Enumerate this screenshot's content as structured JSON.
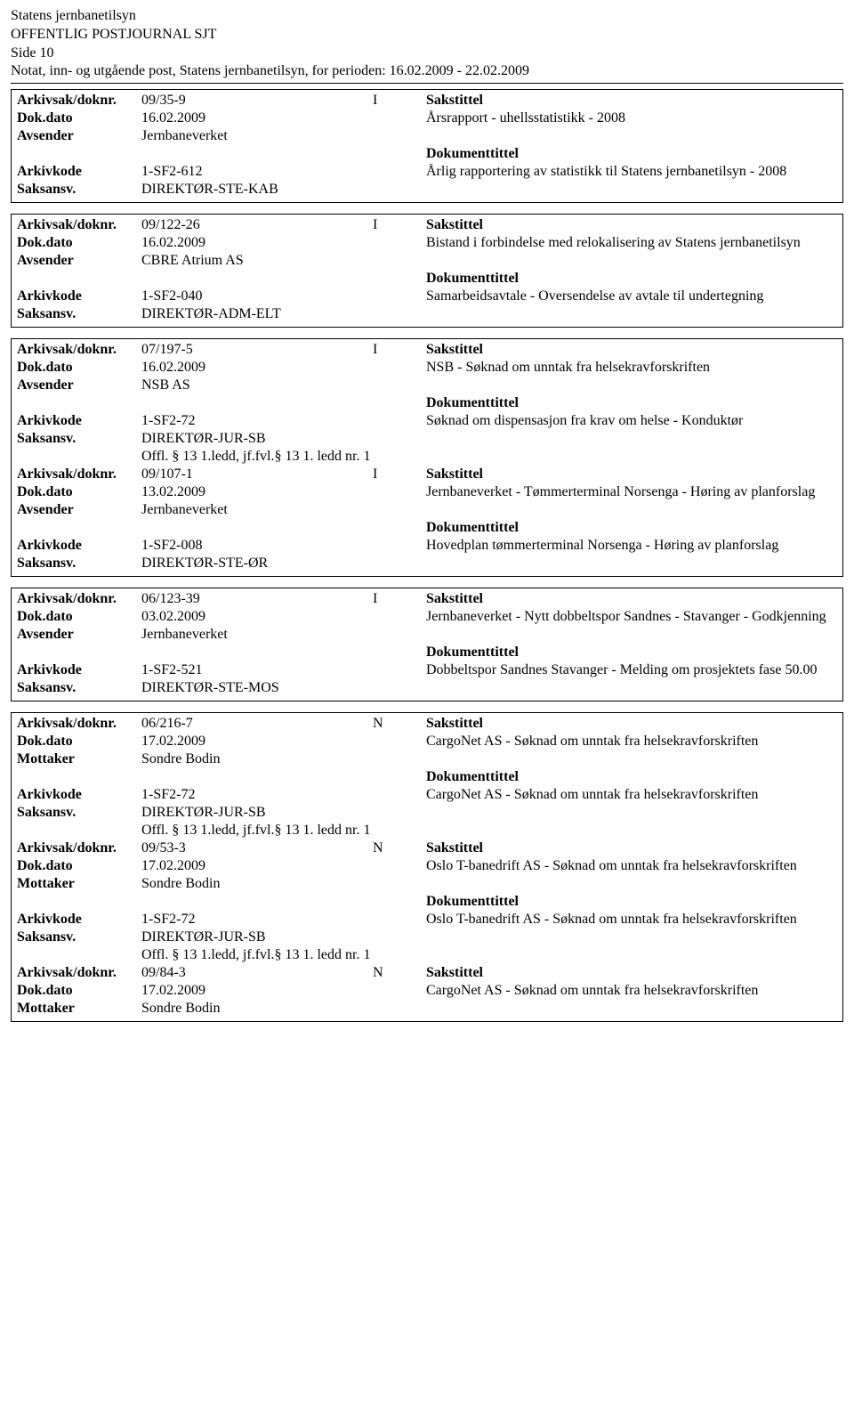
{
  "header": {
    "org": "Statens jernbanetilsyn",
    "title": "OFFENTLIG POSTJOURNAL SJT",
    "page": "Side 10",
    "period_line": "Notat, inn- og utgående post, Statens jernbanetilsyn, for perioden: 16.02.2009 - 22.02.2009"
  },
  "labels": {
    "arkivsak": "Arkivsak/doknr.",
    "dokdato": "Dok.dato",
    "avsender": "Avsender",
    "mottaker": "Mottaker",
    "arkivkode": "Arkivkode",
    "saksansv": "Saksansv.",
    "sakstittel": "Sakstittel",
    "dokumenttittel": "Dokumenttittel"
  },
  "entries": [
    {
      "arkivsak": "09/35-9",
      "io": "I",
      "dokdato": "16.02.2009",
      "party_label": "Avsender",
      "party": "Jernbaneverket",
      "arkivkode": "1-SF2-612",
      "saksansv": "DIREKTØR-STE-KAB",
      "sakstittel": "Årsrapport - uhellsstatistikk - 2008",
      "dokumenttittel": "Årlig rapportering av statistikk til Statens jernbanetilsyn - 2008",
      "offl": null
    },
    {
      "arkivsak": "09/122-26",
      "io": "I",
      "dokdato": "16.02.2009",
      "party_label": "Avsender",
      "party": "CBRE Atrium AS",
      "arkivkode": "1-SF2-040",
      "saksansv": "DIREKTØR-ADM-ELT",
      "sakstittel": "Bistand i forbindelse med relokalisering av Statens jernbanetilsyn",
      "dokumenttittel": "Samarbeidsavtale - Oversendelse av avtale til undertegning",
      "offl": null
    },
    {
      "arkivsak": "07/197-5",
      "io": "I",
      "dokdato": "16.02.2009",
      "party_label": "Avsender",
      "party": "NSB AS",
      "arkivkode": "1-SF2-72",
      "saksansv": "DIREKTØR-JUR-SB",
      "sakstittel": "NSB - Søknad om unntak fra helsekravforskriften",
      "dokumenttittel": "Søknad om dispensasjon fra krav om helse - Konduktør",
      "offl": "Offl. § 13 1.ledd, jf.fvl.§ 13 1. ledd nr. 1"
    },
    {
      "arkivsak": "09/107-1",
      "io": "I",
      "dokdato": "13.02.2009",
      "party_label": "Avsender",
      "party": "Jernbaneverket",
      "arkivkode": "1-SF2-008",
      "saksansv": "DIREKTØR-STE-ØR",
      "sakstittel": "Jernbaneverket - Tømmerterminal Norsenga - Høring av planforslag",
      "dokumenttittel": "Hovedplan tømmerterminal Norsenga - Høring av planforslag",
      "offl": null,
      "joined_above": true
    },
    {
      "arkivsak": "06/123-39",
      "io": "I",
      "dokdato": "03.02.2009",
      "party_label": "Avsender",
      "party": "Jernbaneverket",
      "arkivkode": "1-SF2-521",
      "saksansv": "DIREKTØR-STE-MOS",
      "sakstittel": "Jernbaneverket - Nytt dobbeltspor Sandnes - Stavanger - Godkjenning",
      "dokumenttittel": "Dobbeltspor Sandnes Stavanger - Melding om prosjektets fase 50.00",
      "offl": null
    },
    {
      "arkivsak": "06/216-7",
      "io": "N",
      "dokdato": "17.02.2009",
      "party_label": "Mottaker",
      "party": "Sondre Bodin",
      "arkivkode": "1-SF2-72",
      "saksansv": "DIREKTØR-JUR-SB",
      "sakstittel": "CargoNet AS - Søknad om unntak fra helsekravforskriften",
      "dokumenttittel": "CargoNet AS - Søknad om unntak fra helsekravforskriften",
      "offl": "Offl. § 13 1.ledd, jf.fvl.§ 13 1. ledd nr. 1"
    },
    {
      "arkivsak": "09/53-3",
      "io": "N",
      "dokdato": "17.02.2009",
      "party_label": "Mottaker",
      "party": "Sondre Bodin",
      "arkivkode": "1-SF2-72",
      "saksansv": "DIREKTØR-JUR-SB",
      "sakstittel": "Oslo T-banedrift AS - Søknad om unntak fra helsekravforskriften",
      "dokumenttittel": "Oslo T-banedrift AS - Søknad om unntak fra helsekravforskriften",
      "offl": "Offl. § 13 1.ledd, jf.fvl.§ 13 1. ledd nr. 1",
      "joined_above": true
    },
    {
      "arkivsak": "09/84-3",
      "io": "N",
      "dokdato": "17.02.2009",
      "party_label": "Mottaker",
      "party": "Sondre Bodin",
      "arkivkode": null,
      "saksansv": null,
      "sakstittel": "CargoNet AS - Søknad om unntak fra helsekravforskriften",
      "dokumenttittel": null,
      "offl": null,
      "joined_above": true
    }
  ]
}
